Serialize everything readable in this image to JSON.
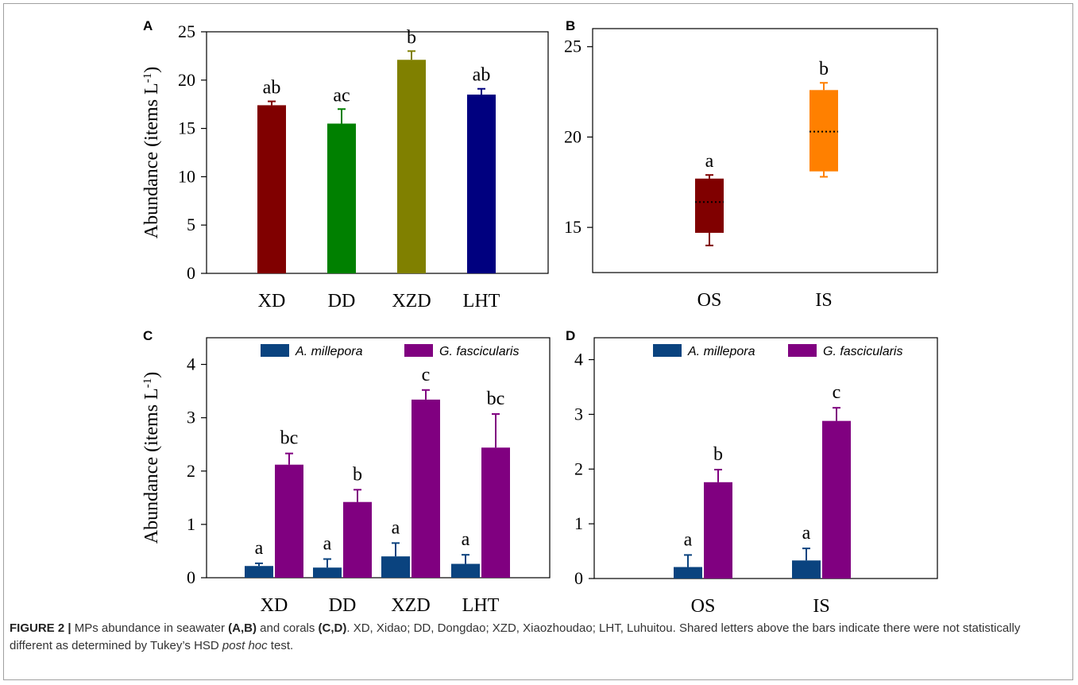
{
  "caption": {
    "label": "FIGURE 2 |",
    "p1": " MPs abundance in seawater ",
    "b1": "(A,B)",
    "p2": " and corals ",
    "b2": "(C,D)",
    "p3": ". XD, Xidao; DD, Dongdao; XZD, Xiaozhoudao; LHT, Luhuitou. Shared letters above the bars indicate there were not statistically different as determined by Tukey’s HSD ",
    "i1": "post hoc",
    "p4": " test."
  },
  "chart_data": [
    {
      "panel": "A",
      "type": "bar",
      "ylabel": "Abundance (items L",
      "ylabel_sup": "-1",
      "ylabel_close": ")",
      "ylim": [
        0,
        25
      ],
      "yticks": [
        0,
        5,
        10,
        15,
        20,
        25
      ],
      "categories": [
        "XD",
        "DD",
        "XZD",
        "LHT"
      ],
      "values": [
        17.4,
        15.5,
        22.1,
        18.5
      ],
      "errors": [
        0.4,
        1.5,
        0.9,
        0.6
      ],
      "letters": [
        "ab",
        "ac",
        "b",
        "ab"
      ],
      "colors": [
        "#800000",
        "#008000",
        "#808000",
        "#00007f"
      ]
    },
    {
      "panel": "B",
      "type": "box",
      "ylim": [
        12.5,
        26
      ],
      "yticks": [
        15,
        20,
        25
      ],
      "categories": [
        "OS",
        "IS"
      ],
      "boxes": [
        {
          "min": 14.0,
          "q1": 14.7,
          "median": 16.4,
          "q3": 17.7,
          "max": 17.9
        },
        {
          "min": 17.8,
          "q1": 18.1,
          "median": 20.3,
          "q3": 22.6,
          "max": 23.0
        }
      ],
      "letters": [
        "a",
        "b"
      ],
      "colors": [
        "#800000",
        "#ff8000"
      ]
    },
    {
      "panel": "C",
      "type": "bar",
      "ylabel": "Abundance (items L",
      "ylabel_sup": "-1",
      "ylabel_close": ")",
      "ylim": [
        0,
        4.5
      ],
      "yticks": [
        0,
        1,
        2,
        3,
        4
      ],
      "categories": [
        "XD",
        "DD",
        "XZD",
        "LHT"
      ],
      "series": [
        {
          "name": "A. millepora",
          "color": "#0a437f",
          "values": [
            0.22,
            0.19,
            0.4,
            0.26
          ],
          "errors": [
            0.05,
            0.16,
            0.25,
            0.17
          ],
          "letters": [
            "a",
            "a",
            "a",
            "a"
          ]
        },
        {
          "name": "G. fascicularis",
          "color": "#800080",
          "values": [
            2.12,
            1.42,
            3.34,
            2.44
          ],
          "errors": [
            0.21,
            0.23,
            0.18,
            0.63
          ],
          "letters": [
            "bc",
            "b",
            "c",
            "bc"
          ]
        }
      ]
    },
    {
      "panel": "D",
      "type": "bar",
      "ylim": [
        0,
        4.4
      ],
      "yticks": [
        0,
        1,
        2,
        3,
        4
      ],
      "categories": [
        "OS",
        "IS"
      ],
      "series": [
        {
          "name": "A. millepora",
          "color": "#0a437f",
          "values": [
            0.21,
            0.33
          ],
          "errors": [
            0.22,
            0.22
          ],
          "letters": [
            "a",
            "a"
          ]
        },
        {
          "name": "G. fascicularis",
          "color": "#800080",
          "values": [
            1.76,
            2.88
          ],
          "errors": [
            0.23,
            0.24
          ],
          "letters": [
            "b",
            "c"
          ]
        }
      ]
    }
  ]
}
